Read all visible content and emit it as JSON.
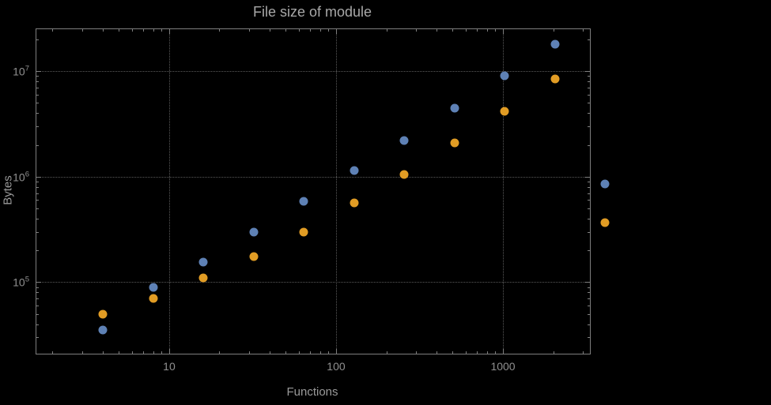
{
  "chart_data": {
    "type": "scatter",
    "title": "File size of module",
    "xlabel": "Functions",
    "ylabel": "Bytes",
    "x_scale": "log",
    "y_scale": "log",
    "x_range": [
      1.6,
      3320
    ],
    "y_range": [
      21000,
      25000000
    ],
    "x_ticks": [
      10,
      100,
      1000
    ],
    "x_tick_labels": [
      "10",
      "100",
      "1000"
    ],
    "y_ticks": [
      100000,
      1000000,
      10000000
    ],
    "y_tick_exponents": [
      5,
      6,
      7
    ],
    "grid": "dotted",
    "legend": "none",
    "series": [
      {
        "name": "series-1-blue",
        "color": "#5e81b5",
        "points": [
          [
            4,
            35000
          ],
          [
            8,
            90000
          ],
          [
            16,
            155000
          ],
          [
            32,
            300000
          ],
          [
            64,
            580000
          ],
          [
            128,
            1150000
          ],
          [
            256,
            2200000
          ],
          [
            512,
            4500000
          ],
          [
            1024,
            9000000
          ],
          [
            2048,
            18000000
          ],
          [
            4096,
            850000
          ]
        ]
      },
      {
        "name": "series-2-orange",
        "color": "#e19c24",
        "points": [
          [
            4,
            50000
          ],
          [
            8,
            70000
          ],
          [
            16,
            110000
          ],
          [
            32,
            175000
          ],
          [
            64,
            300000
          ],
          [
            128,
            560000
          ],
          [
            256,
            1050000
          ],
          [
            512,
            2100000
          ],
          [
            1024,
            4200000
          ],
          [
            2048,
            8500000
          ],
          [
            4096,
            370000
          ]
        ]
      }
    ],
    "theme_colors": {
      "background": "#000000",
      "frame": "#7e7e7e",
      "gridline": "#5a5a5a",
      "text": "#9a9a9a",
      "title": "#a8a8a8"
    }
  }
}
